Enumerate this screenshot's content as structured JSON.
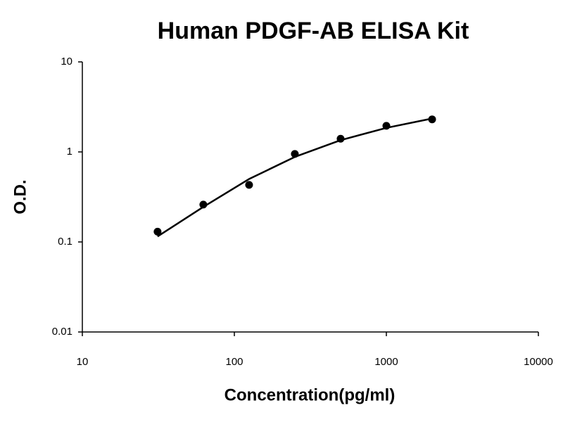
{
  "chart_data": {
    "type": "scatter",
    "title": "Human PDGF-AB ELISA Kit",
    "x_label": "Concentration(pg/ml)",
    "y_label": "O.D.",
    "x": [
      31.25,
      62.5,
      125,
      250,
      500,
      1000,
      2000
    ],
    "series": [
      {
        "type": "scatter",
        "color": "#000000",
        "values": [
          0.13,
          0.26,
          0.43,
          0.95,
          1.4,
          1.95,
          2.3
        ]
      },
      {
        "type": "line",
        "color": "#000000",
        "values": [
          0.115,
          0.245,
          0.5,
          0.88,
          1.35,
          1.85,
          2.35
        ]
      }
    ],
    "xscale": "log",
    "yscale": "log",
    "xlim": [
      10,
      10000
    ],
    "xticks": [
      10,
      100,
      1000,
      10000
    ],
    "ylim": [
      0.01,
      10
    ],
    "yticks": [
      0.01,
      0.1,
      1,
      10
    ],
    "grid": false
  }
}
